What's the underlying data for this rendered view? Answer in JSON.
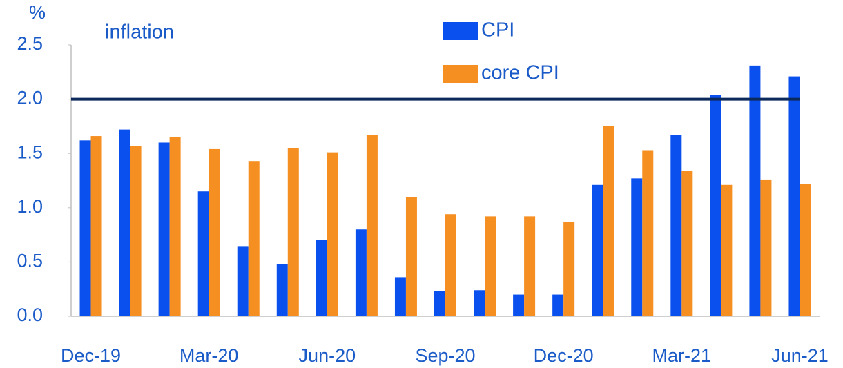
{
  "chart_data": {
    "type": "bar",
    "y_label": "%",
    "annotation": "inflation",
    "categories": [
      "Dec-19",
      null,
      null,
      "Mar-20",
      null,
      null,
      "Jun-20",
      null,
      null,
      "Sep-20",
      null,
      null,
      "Dec-20",
      null,
      null,
      "Mar-21",
      null,
      null,
      "Jun-21"
    ],
    "series": [
      {
        "name": "CPI",
        "color": "#0a50ee",
        "values": [
          1.62,
          1.72,
          1.6,
          1.15,
          0.64,
          0.48,
          0.7,
          0.8,
          0.36,
          0.23,
          0.24,
          0.2,
          0.2,
          1.21,
          1.27,
          1.67,
          2.04,
          2.31,
          2.21
        ]
      },
      {
        "name": "core CPI",
        "color": "#f58f22",
        "values": [
          1.66,
          1.57,
          1.65,
          1.54,
          1.43,
          1.55,
          1.51,
          1.67,
          1.1,
          0.94,
          0.92,
          0.92,
          0.87,
          1.75,
          1.53,
          1.34,
          1.21,
          1.26,
          1.22
        ]
      }
    ],
    "reference_line": {
      "value": 2,
      "color": "#0b2a5b"
    },
    "ylim": [
      0,
      2.5
    ],
    "yticks": [
      {
        "value": 0,
        "label": "0.0"
      },
      {
        "value": 0.5,
        "label": "0.5"
      },
      {
        "value": 1,
        "label": "1.0"
      },
      {
        "value": 1.5,
        "label": "1.5"
      },
      {
        "value": 2,
        "label": "2.0"
      },
      {
        "value": 2.5,
        "label": "2.5"
      }
    ],
    "grid": false
  }
}
